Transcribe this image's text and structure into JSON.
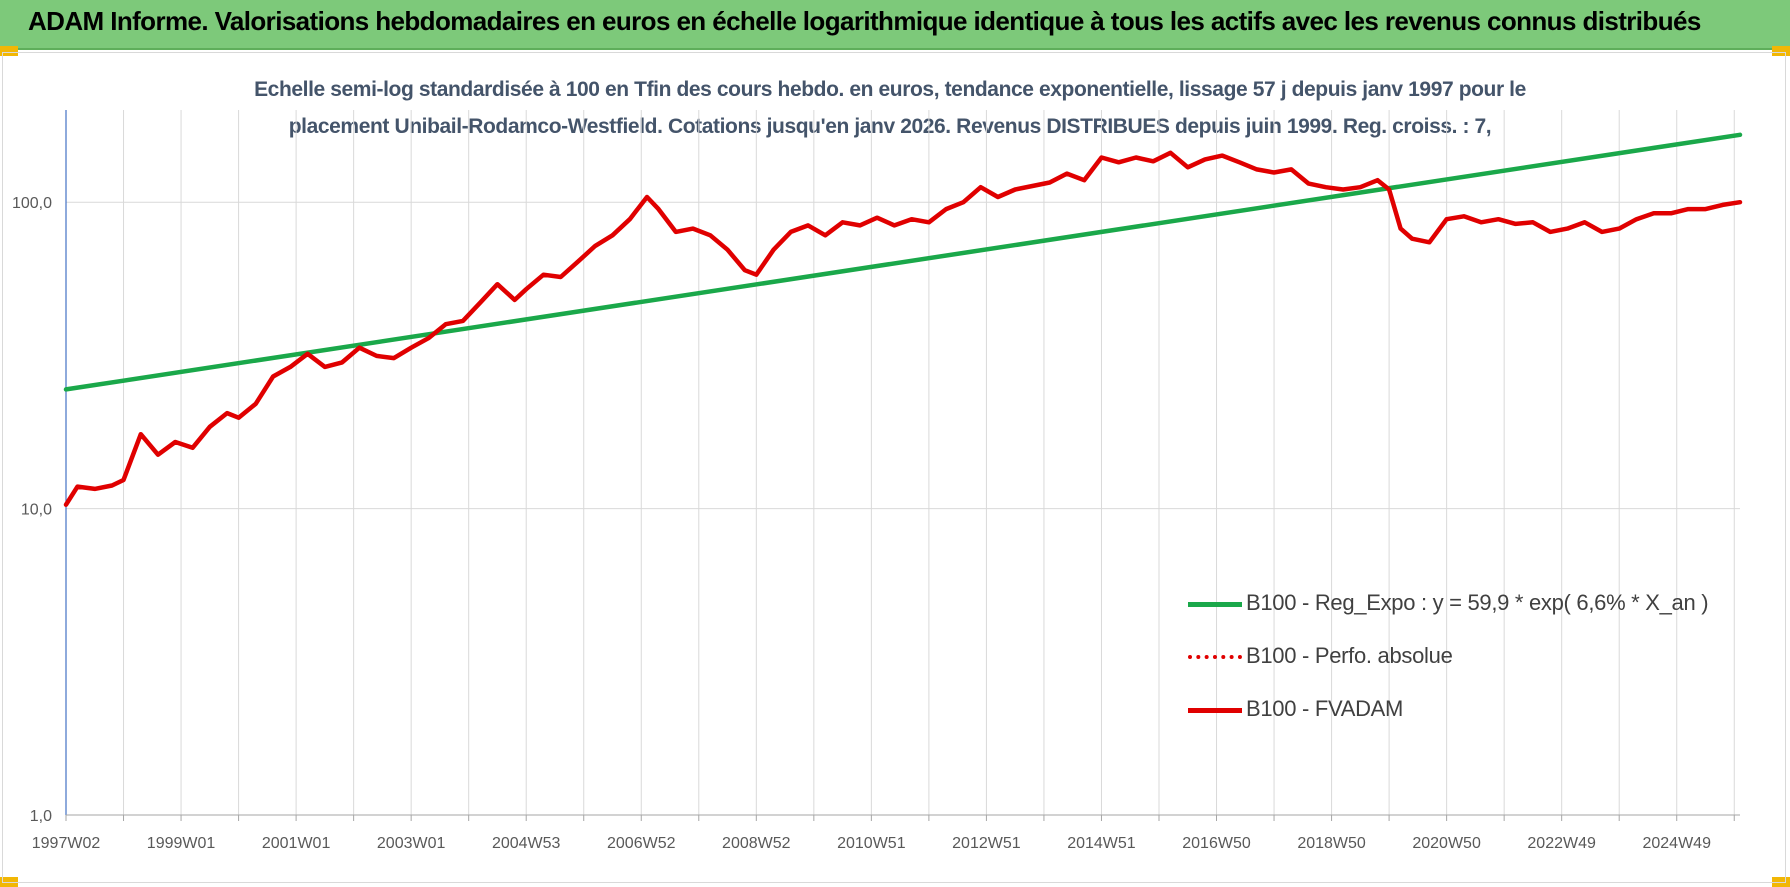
{
  "header": {
    "title": "ADAM Informe. Valorisations hebdomadaires en euros en échelle logarithmique identique à tous les actifs avec les revenus connus distribués"
  },
  "chart_data": {
    "type": "line",
    "subtitle_line1": "Echelle semi-log standardisée à 100 en Tfin des cours hebdo. en euros, tendance exponentielle, lissage 57 j depuis janv 1997 pour le",
    "subtitle_line2": "placement Unibail-Rodamco-Westfield. Cotations jusqu'en janv 2026. Revenus DISTRIBUES depuis juin 1999. Reg. croiss. : 7,",
    "y_scale": "log",
    "ylim": [
      1,
      200
    ],
    "xlim": [
      1997.0,
      2026.1
    ],
    "grid": true,
    "legend_position": "bottom-right",
    "y_ticks": [
      {
        "value": 1,
        "label": "1,0"
      },
      {
        "value": 10,
        "label": "10,0"
      },
      {
        "value": 100,
        "label": "100,0"
      }
    ],
    "x_ticks": [
      {
        "value": 1997.0,
        "label": "1997W02"
      },
      {
        "value": 1999.0,
        "label": "1999W01"
      },
      {
        "value": 2001.0,
        "label": "2001W01"
      },
      {
        "value": 2003.0,
        "label": "2003W01"
      },
      {
        "value": 2005.0,
        "label": "2004W53"
      },
      {
        "value": 2007.0,
        "label": "2006W52"
      },
      {
        "value": 2009.0,
        "label": "2008W52"
      },
      {
        "value": 2011.0,
        "label": "2010W51"
      },
      {
        "value": 2013.0,
        "label": "2012W51"
      },
      {
        "value": 2015.0,
        "label": "2014W51"
      },
      {
        "value": 2017.0,
        "label": "2016W50"
      },
      {
        "value": 2019.0,
        "label": "2018W50"
      },
      {
        "value": 2021.0,
        "label": "2020W50"
      },
      {
        "value": 2023.0,
        "label": "2022W49"
      },
      {
        "value": 2025.0,
        "label": "2024W49"
      }
    ],
    "series": [
      {
        "name": "B100 - Reg_Expo : y = 59,9 * exp( 6,6% *  X_an )",
        "color": "#1aa84a",
        "style": "solid",
        "x": [
          1997.0,
          2026.1
        ],
        "values": [
          24.5,
          166
        ]
      },
      {
        "name": "B100 - Perfo. absolue",
        "color": "#e00000",
        "style": "dotted",
        "x": [],
        "values": []
      },
      {
        "name": "B100 - FVADAM",
        "color": "#e00000",
        "style": "solid",
        "x": [
          1997.0,
          1997.2,
          1997.5,
          1997.8,
          1998.0,
          1998.3,
          1998.6,
          1998.9,
          1999.2,
          1999.5,
          1999.8,
          2000.0,
          2000.3,
          2000.6,
          2000.9,
          2001.2,
          2001.5,
          2001.8,
          2002.1,
          2002.4,
          2002.7,
          2003.0,
          2003.3,
          2003.6,
          2003.9,
          2004.2,
          2004.5,
          2004.8,
          2005.0,
          2005.3,
          2005.6,
          2005.9,
          2006.2,
          2006.5,
          2006.8,
          2007.1,
          2007.3,
          2007.6,
          2007.9,
          2008.2,
          2008.5,
          2008.8,
          2009.0,
          2009.3,
          2009.6,
          2009.9,
          2010.2,
          2010.5,
          2010.8,
          2011.1,
          2011.4,
          2011.7,
          2012.0,
          2012.3,
          2012.6,
          2012.9,
          2013.2,
          2013.5,
          2013.8,
          2014.1,
          2014.4,
          2014.7,
          2015.0,
          2015.3,
          2015.6,
          2015.9,
          2016.2,
          2016.5,
          2016.8,
          2017.1,
          2017.4,
          2017.7,
          2018.0,
          2018.3,
          2018.6,
          2018.9,
          2019.2,
          2019.5,
          2019.8,
          2020.0,
          2020.2,
          2020.4,
          2020.7,
          2021.0,
          2021.3,
          2021.6,
          2021.9,
          2022.2,
          2022.5,
          2022.8,
          2023.1,
          2023.4,
          2023.7,
          2024.0,
          2024.3,
          2024.6,
          2024.9,
          2025.2,
          2025.5,
          2025.8,
          2026.1
        ],
        "values": [
          10.3,
          11.8,
          11.6,
          11.9,
          12.4,
          17.5,
          15.0,
          16.5,
          15.8,
          18.5,
          20.5,
          19.8,
          22.0,
          27.0,
          29.0,
          32.0,
          29.0,
          30.0,
          33.5,
          31.5,
          31.0,
          33.5,
          36.0,
          40.0,
          41.0,
          47.0,
          54.0,
          48.0,
          52.0,
          58.0,
          57.0,
          64.0,
          72.0,
          78.0,
          88.0,
          104.0,
          95.0,
          80.0,
          82.0,
          78.0,
          70.0,
          60.0,
          58.0,
          70.0,
          80.0,
          84.0,
          78.0,
          86.0,
          84.0,
          89.0,
          84.0,
          88.0,
          86.0,
          95.0,
          100.0,
          112.0,
          104.0,
          110.0,
          113.0,
          116.0,
          124.0,
          118.0,
          140.0,
          135.0,
          140.0,
          136.0,
          145.0,
          130.0,
          138.0,
          142.0,
          135.0,
          128.0,
          125.0,
          128.0,
          115.0,
          112.0,
          110.0,
          112.0,
          118.0,
          110.0,
          82.0,
          76.0,
          74.0,
          88.0,
          90.0,
          86.0,
          88.0,
          85.0,
          86.0,
          80.0,
          82.0,
          86.0,
          80.0,
          82.0,
          88.0,
          92.0,
          92.0,
          95.0,
          95.0,
          98.0,
          100.0
        ]
      }
    ]
  }
}
